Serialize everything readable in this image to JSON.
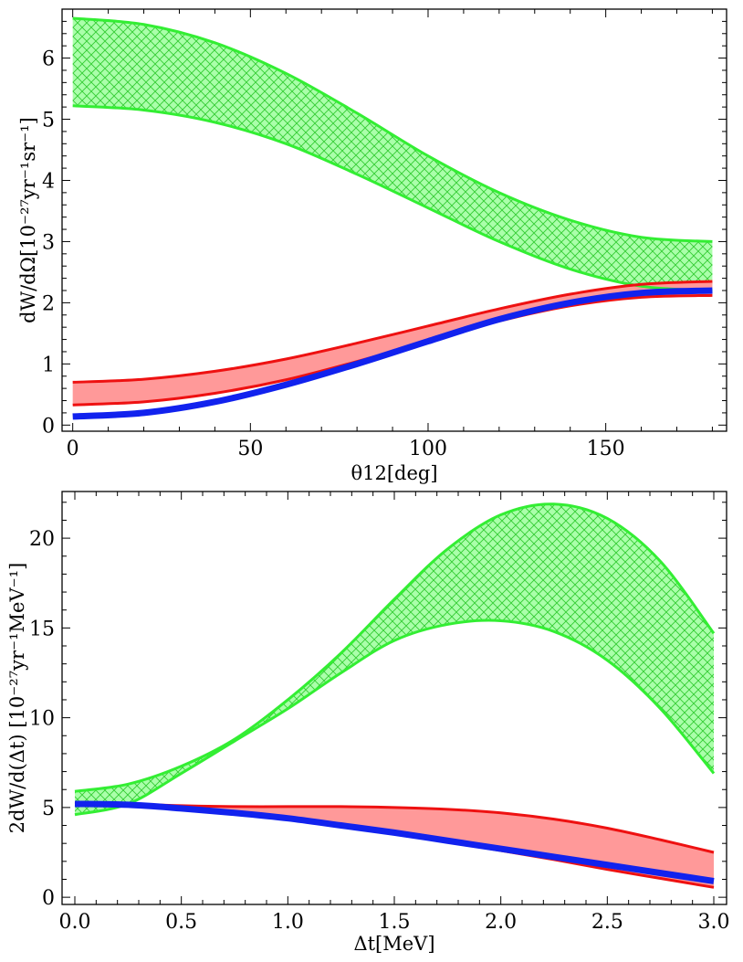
{
  "colors": {
    "green": "#33ee33",
    "green_fill": "#aaffaa",
    "red": "#ee1111",
    "red_fill": "#ff9999",
    "blue": "#1122ee"
  },
  "chart_data": [
    {
      "type": "line",
      "panel": "top",
      "title": "",
      "xlabel": "θ12[deg]",
      "ylabel": "dW/dΩ[10⁻²⁷yr⁻¹sr⁻¹]",
      "xlim": [
        -3,
        184
      ],
      "ylim": [
        -0.1,
        6.8
      ],
      "xticks": [
        0,
        50,
        100,
        150
      ],
      "xtick_labels": [
        "0",
        "50",
        "100",
        "150"
      ],
      "yticks": [
        0,
        1,
        2,
        3,
        4,
        5,
        6
      ],
      "ytick_labels": [
        "0",
        "1",
        "2",
        "3",
        "4",
        "5",
        "6"
      ],
      "x": [
        0,
        20,
        40,
        60,
        80,
        100,
        120,
        140,
        160,
        180
      ],
      "series": [
        {
          "name": "green band upper",
          "band": "green",
          "values": [
            6.65,
            6.55,
            6.25,
            5.75,
            5.1,
            4.4,
            3.8,
            3.35,
            3.07,
            3.0
          ]
        },
        {
          "name": "green band lower",
          "band": "green",
          "values": [
            5.22,
            5.15,
            4.95,
            4.6,
            4.1,
            3.55,
            3.0,
            2.55,
            2.27,
            2.2
          ]
        },
        {
          "name": "red band upper",
          "band": "red",
          "values": [
            0.7,
            0.75,
            0.88,
            1.08,
            1.34,
            1.62,
            1.9,
            2.14,
            2.3,
            2.35
          ]
        },
        {
          "name": "red band lower",
          "band": "red",
          "values": [
            0.33,
            0.38,
            0.52,
            0.74,
            1.04,
            1.37,
            1.7,
            1.95,
            2.09,
            2.12
          ]
        },
        {
          "name": "blue curve",
          "values": [
            0.14,
            0.2,
            0.38,
            0.66,
            1.0,
            1.37,
            1.73,
            2.0,
            2.16,
            2.2
          ]
        }
      ]
    },
    {
      "type": "line",
      "panel": "bottom",
      "title": "",
      "xlabel": "Δt[MeV]",
      "ylabel": "2dW/d(Δt) [10⁻²⁷yr⁻¹MeV⁻¹]",
      "xlim": [
        -0.06,
        3.06
      ],
      "ylim": [
        -0.4,
        22.6
      ],
      "xticks": [
        0,
        0.5,
        1,
        1.5,
        2,
        2.5,
        3
      ],
      "xtick_labels": [
        "0.0",
        "0.5",
        "1.0",
        "1.5",
        "2.0",
        "2.5",
        "3.0"
      ],
      "yticks": [
        0,
        5,
        10,
        15,
        20
      ],
      "ytick_labels": [
        "0",
        "5",
        "10",
        "15",
        "20"
      ],
      "x": [
        0,
        0.25,
        0.5,
        0.75,
        1.0,
        1.25,
        1.5,
        1.75,
        2.0,
        2.25,
        2.5,
        2.75,
        3.0
      ],
      "series": [
        {
          "name": "green band upper",
          "band": "green",
          "values": [
            5.9,
            6.3,
            7.3,
            8.8,
            11.0,
            13.6,
            16.6,
            19.4,
            21.3,
            21.9,
            21.1,
            18.7,
            14.7
          ]
        },
        {
          "name": "green band lower",
          "band": "green",
          "values": [
            4.6,
            5.2,
            6.9,
            8.7,
            10.5,
            12.5,
            14.3,
            15.2,
            15.4,
            14.8,
            13.2,
            10.5,
            6.9
          ]
        },
        {
          "name": "red band upper",
          "band": "red",
          "values": [
            5.3,
            5.2,
            5.1,
            5.05,
            5.05,
            5.05,
            5.0,
            4.9,
            4.7,
            4.35,
            3.85,
            3.2,
            2.5
          ]
        },
        {
          "name": "red band lower",
          "band": "red",
          "values": [
            5.3,
            5.2,
            5.0,
            4.75,
            4.4,
            4.0,
            3.55,
            3.1,
            2.6,
            2.1,
            1.55,
            1.05,
            0.55
          ]
        },
        {
          "name": "blue curve",
          "values": [
            5.2,
            5.15,
            4.95,
            4.7,
            4.4,
            4.0,
            3.6,
            3.15,
            2.7,
            2.25,
            1.8,
            1.35,
            0.9
          ]
        }
      ]
    }
  ]
}
